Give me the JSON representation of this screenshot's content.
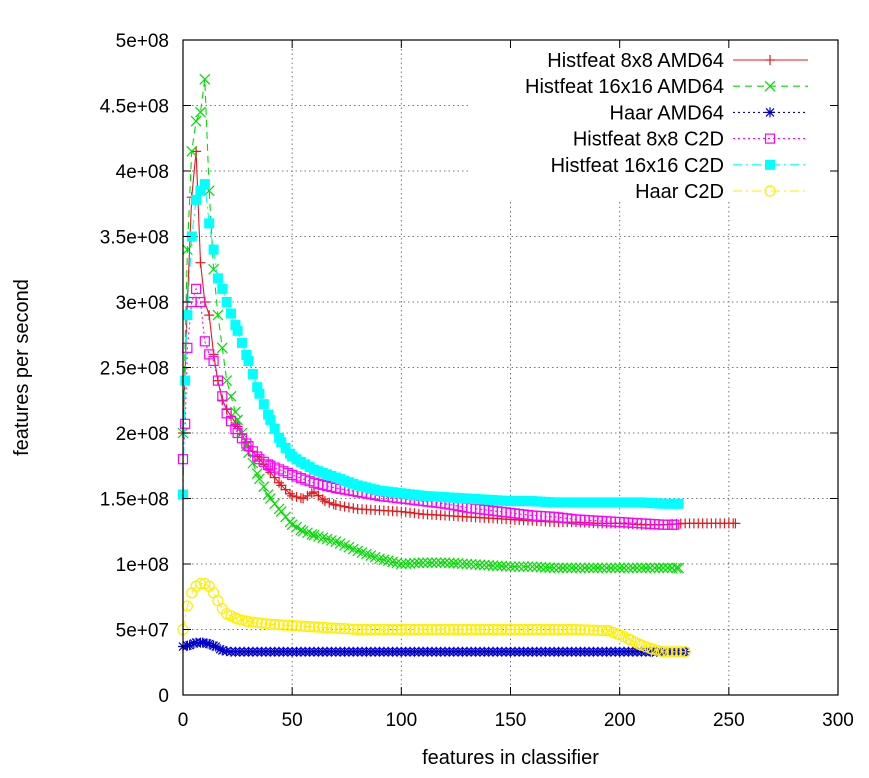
{
  "chart_data": {
    "type": "line",
    "title": "",
    "xlabel": "features in classifier",
    "ylabel": "features per second",
    "xlim": [
      0,
      300
    ],
    "ylim": [
      0,
      500000000
    ],
    "xticks": [
      0,
      50,
      100,
      150,
      200,
      250,
      300
    ],
    "yticks": [
      0,
      50000000,
      100000000,
      150000000,
      200000000,
      250000000,
      300000000,
      350000000,
      400000000,
      450000000,
      500000000
    ],
    "xtick_labels": [
      "0",
      "50",
      "100",
      "150",
      "200",
      "250",
      "300"
    ],
    "ytick_labels": [
      "0",
      "5e+07",
      "1e+08",
      "1.5e+08",
      "2e+08",
      "2.5e+08",
      "3e+08",
      "3.5e+08",
      "4e+08",
      "4.5e+08",
      "5e+08"
    ],
    "grid": true,
    "legend_position": "top-right",
    "series": [
      {
        "name": "Histfeat 8x8 AMD64",
        "color": "#e41a1c",
        "marker": "plus",
        "dash": "solid",
        "points": [
          [
            0,
            200000000
          ],
          [
            2,
            300000000
          ],
          [
            4,
            380000000
          ],
          [
            6,
            415000000
          ],
          [
            8,
            330000000
          ],
          [
            10,
            300000000
          ],
          [
            12,
            290000000
          ],
          [
            14,
            260000000
          ],
          [
            16,
            240000000
          ],
          [
            18,
            225000000
          ],
          [
            20,
            218000000
          ],
          [
            25,
            205000000
          ],
          [
            30,
            190000000
          ],
          [
            35,
            180000000
          ],
          [
            40,
            170000000
          ],
          [
            45,
            160000000
          ],
          [
            50,
            152000000
          ],
          [
            55,
            150000000
          ],
          [
            60,
            155000000
          ],
          [
            65,
            148000000
          ],
          [
            70,
            145000000
          ],
          [
            80,
            142000000
          ],
          [
            90,
            141000000
          ],
          [
            100,
            140000000
          ],
          [
            110,
            138000000
          ],
          [
            120,
            137000000
          ],
          [
            130,
            136000000
          ],
          [
            140,
            135000000
          ],
          [
            150,
            134000000
          ],
          [
            160,
            133000000
          ],
          [
            170,
            132000000
          ],
          [
            180,
            132000000
          ],
          [
            190,
            131000000
          ],
          [
            200,
            131000000
          ],
          [
            210,
            130000000
          ],
          [
            220,
            130000000
          ],
          [
            230,
            131000000
          ],
          [
            240,
            131000000
          ],
          [
            253,
            131000000
          ]
        ]
      },
      {
        "name": "Histfeat 16x16 AMD64",
        "color": "#00dd00",
        "marker": "cross",
        "dash": "dashed",
        "points": [
          [
            0,
            200000000
          ],
          [
            2,
            340000000
          ],
          [
            4,
            415000000
          ],
          [
            6,
            438000000
          ],
          [
            8,
            445000000
          ],
          [
            10,
            470000000
          ],
          [
            12,
            385000000
          ],
          [
            14,
            325000000
          ],
          [
            16,
            290000000
          ],
          [
            18,
            265000000
          ],
          [
            20,
            240000000
          ],
          [
            25,
            210000000
          ],
          [
            30,
            185000000
          ],
          [
            35,
            165000000
          ],
          [
            40,
            150000000
          ],
          [
            45,
            140000000
          ],
          [
            50,
            130000000
          ],
          [
            55,
            125000000
          ],
          [
            60,
            122000000
          ],
          [
            70,
            117000000
          ],
          [
            80,
            110000000
          ],
          [
            90,
            104000000
          ],
          [
            100,
            100000000
          ],
          [
            110,
            101000000
          ],
          [
            120,
            101000000
          ],
          [
            130,
            100000000
          ],
          [
            140,
            99000000
          ],
          [
            150,
            98000000
          ],
          [
            160,
            98000000
          ],
          [
            170,
            97000000
          ],
          [
            180,
            97000000
          ],
          [
            190,
            97000000
          ],
          [
            200,
            97000000
          ],
          [
            210,
            97000000
          ],
          [
            220,
            97000000
          ],
          [
            227,
            97000000
          ]
        ]
      },
      {
        "name": "Haar AMD64",
        "color": "#0000cc",
        "marker": "star",
        "dash": "dotted",
        "points": [
          [
            0,
            37000000
          ],
          [
            3,
            38000000
          ],
          [
            6,
            40000000
          ],
          [
            9,
            40000000
          ],
          [
            12,
            39000000
          ],
          [
            15,
            37000000
          ],
          [
            18,
            34000000
          ],
          [
            22,
            33000000
          ],
          [
            30,
            33000000
          ],
          [
            40,
            33000000
          ],
          [
            60,
            33000000
          ],
          [
            80,
            33000000
          ],
          [
            100,
            33000000
          ],
          [
            120,
            33000000
          ],
          [
            140,
            33000000
          ],
          [
            160,
            33000000
          ],
          [
            180,
            33000000
          ],
          [
            200,
            33000000
          ],
          [
            215,
            33000000
          ],
          [
            230,
            33000000
          ]
        ]
      },
      {
        "name": "Histfeat 8x8 C2D",
        "color": "#ff00ff",
        "marker": "open-square",
        "dash": "dotted",
        "points": [
          [
            0,
            180000000
          ],
          [
            1,
            207000000
          ],
          [
            2,
            265000000
          ],
          [
            4,
            300000000
          ],
          [
            6,
            310000000
          ],
          [
            8,
            300000000
          ],
          [
            10,
            270000000
          ],
          [
            12,
            260000000
          ],
          [
            14,
            255000000
          ],
          [
            16,
            240000000
          ],
          [
            18,
            228000000
          ],
          [
            20,
            215000000
          ],
          [
            25,
            200000000
          ],
          [
            30,
            190000000
          ],
          [
            35,
            180000000
          ],
          [
            40,
            175000000
          ],
          [
            50,
            168000000
          ],
          [
            60,
            162000000
          ],
          [
            70,
            158000000
          ],
          [
            80,
            155000000
          ],
          [
            90,
            152000000
          ],
          [
            100,
            150000000
          ],
          [
            110,
            148000000
          ],
          [
            120,
            146000000
          ],
          [
            130,
            143000000
          ],
          [
            140,
            141000000
          ],
          [
            150,
            139000000
          ],
          [
            160,
            137000000
          ],
          [
            170,
            136000000
          ],
          [
            180,
            134000000
          ],
          [
            190,
            133000000
          ],
          [
            200,
            132000000
          ],
          [
            210,
            131000000
          ],
          [
            220,
            130000000
          ],
          [
            225,
            130000000
          ]
        ]
      },
      {
        "name": "Histfeat 16x16 C2D",
        "color": "#00ffff",
        "marker": "filled-square",
        "dash": "dashdot",
        "points": [
          [
            0,
            153000000
          ],
          [
            1,
            240000000
          ],
          [
            2,
            290000000
          ],
          [
            4,
            350000000
          ],
          [
            6,
            378000000
          ],
          [
            8,
            385000000
          ],
          [
            10,
            390000000
          ],
          [
            12,
            360000000
          ],
          [
            14,
            340000000
          ],
          [
            16,
            318000000
          ],
          [
            18,
            310000000
          ],
          [
            20,
            300000000
          ],
          [
            25,
            278000000
          ],
          [
            30,
            255000000
          ],
          [
            35,
            230000000
          ],
          [
            40,
            210000000
          ],
          [
            45,
            193000000
          ],
          [
            50,
            182000000
          ],
          [
            60,
            172000000
          ],
          [
            70,
            166000000
          ],
          [
            80,
            160000000
          ],
          [
            90,
            156000000
          ],
          [
            100,
            154000000
          ],
          [
            110,
            152000000
          ],
          [
            120,
            151000000
          ],
          [
            130,
            150000000
          ],
          [
            140,
            149000000
          ],
          [
            150,
            148000000
          ],
          [
            160,
            148000000
          ],
          [
            170,
            147000000
          ],
          [
            180,
            147000000
          ],
          [
            190,
            147000000
          ],
          [
            200,
            147000000
          ],
          [
            210,
            147000000
          ],
          [
            220,
            146000000
          ],
          [
            227,
            146000000
          ]
        ]
      },
      {
        "name": "Haar C2D",
        "color": "#ffee00",
        "marker": "open-circle",
        "dash": "dashdot",
        "points": [
          [
            0,
            50000000
          ],
          [
            2,
            68000000
          ],
          [
            4,
            78000000
          ],
          [
            6,
            83000000
          ],
          [
            8,
            85000000
          ],
          [
            10,
            85000000
          ],
          [
            12,
            83000000
          ],
          [
            14,
            78000000
          ],
          [
            16,
            72000000
          ],
          [
            18,
            66000000
          ],
          [
            20,
            62000000
          ],
          [
            25,
            58000000
          ],
          [
            30,
            56000000
          ],
          [
            40,
            54000000
          ],
          [
            50,
            53000000
          ],
          [
            60,
            52000000
          ],
          [
            70,
            51000000
          ],
          [
            80,
            50000000
          ],
          [
            100,
            50000000
          ],
          [
            120,
            50000000
          ],
          [
            140,
            50000000
          ],
          [
            160,
            50000000
          ],
          [
            180,
            50000000
          ],
          [
            195,
            49000000
          ],
          [
            200,
            46000000
          ],
          [
            205,
            42000000
          ],
          [
            210,
            38000000
          ],
          [
            215,
            35000000
          ],
          [
            220,
            33000000
          ],
          [
            230,
            33000000
          ]
        ]
      }
    ]
  }
}
